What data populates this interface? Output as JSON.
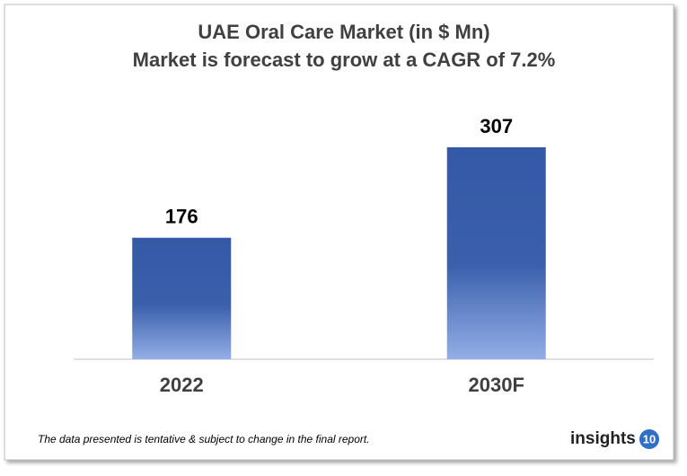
{
  "chart_data": {
    "type": "bar",
    "title": "UAE Oral Care Market (in $ Mn)",
    "subtitle": "Market is forecast to grow at a CAGR of 7.2%",
    "categories": [
      "2022",
      "2030F"
    ],
    "values": [
      176,
      307
    ],
    "color": "#3a5fa8",
    "footnote": "The data presented is tentative & subject to change in the final report.",
    "logo": {
      "text": "insights",
      "number": "10"
    }
  }
}
